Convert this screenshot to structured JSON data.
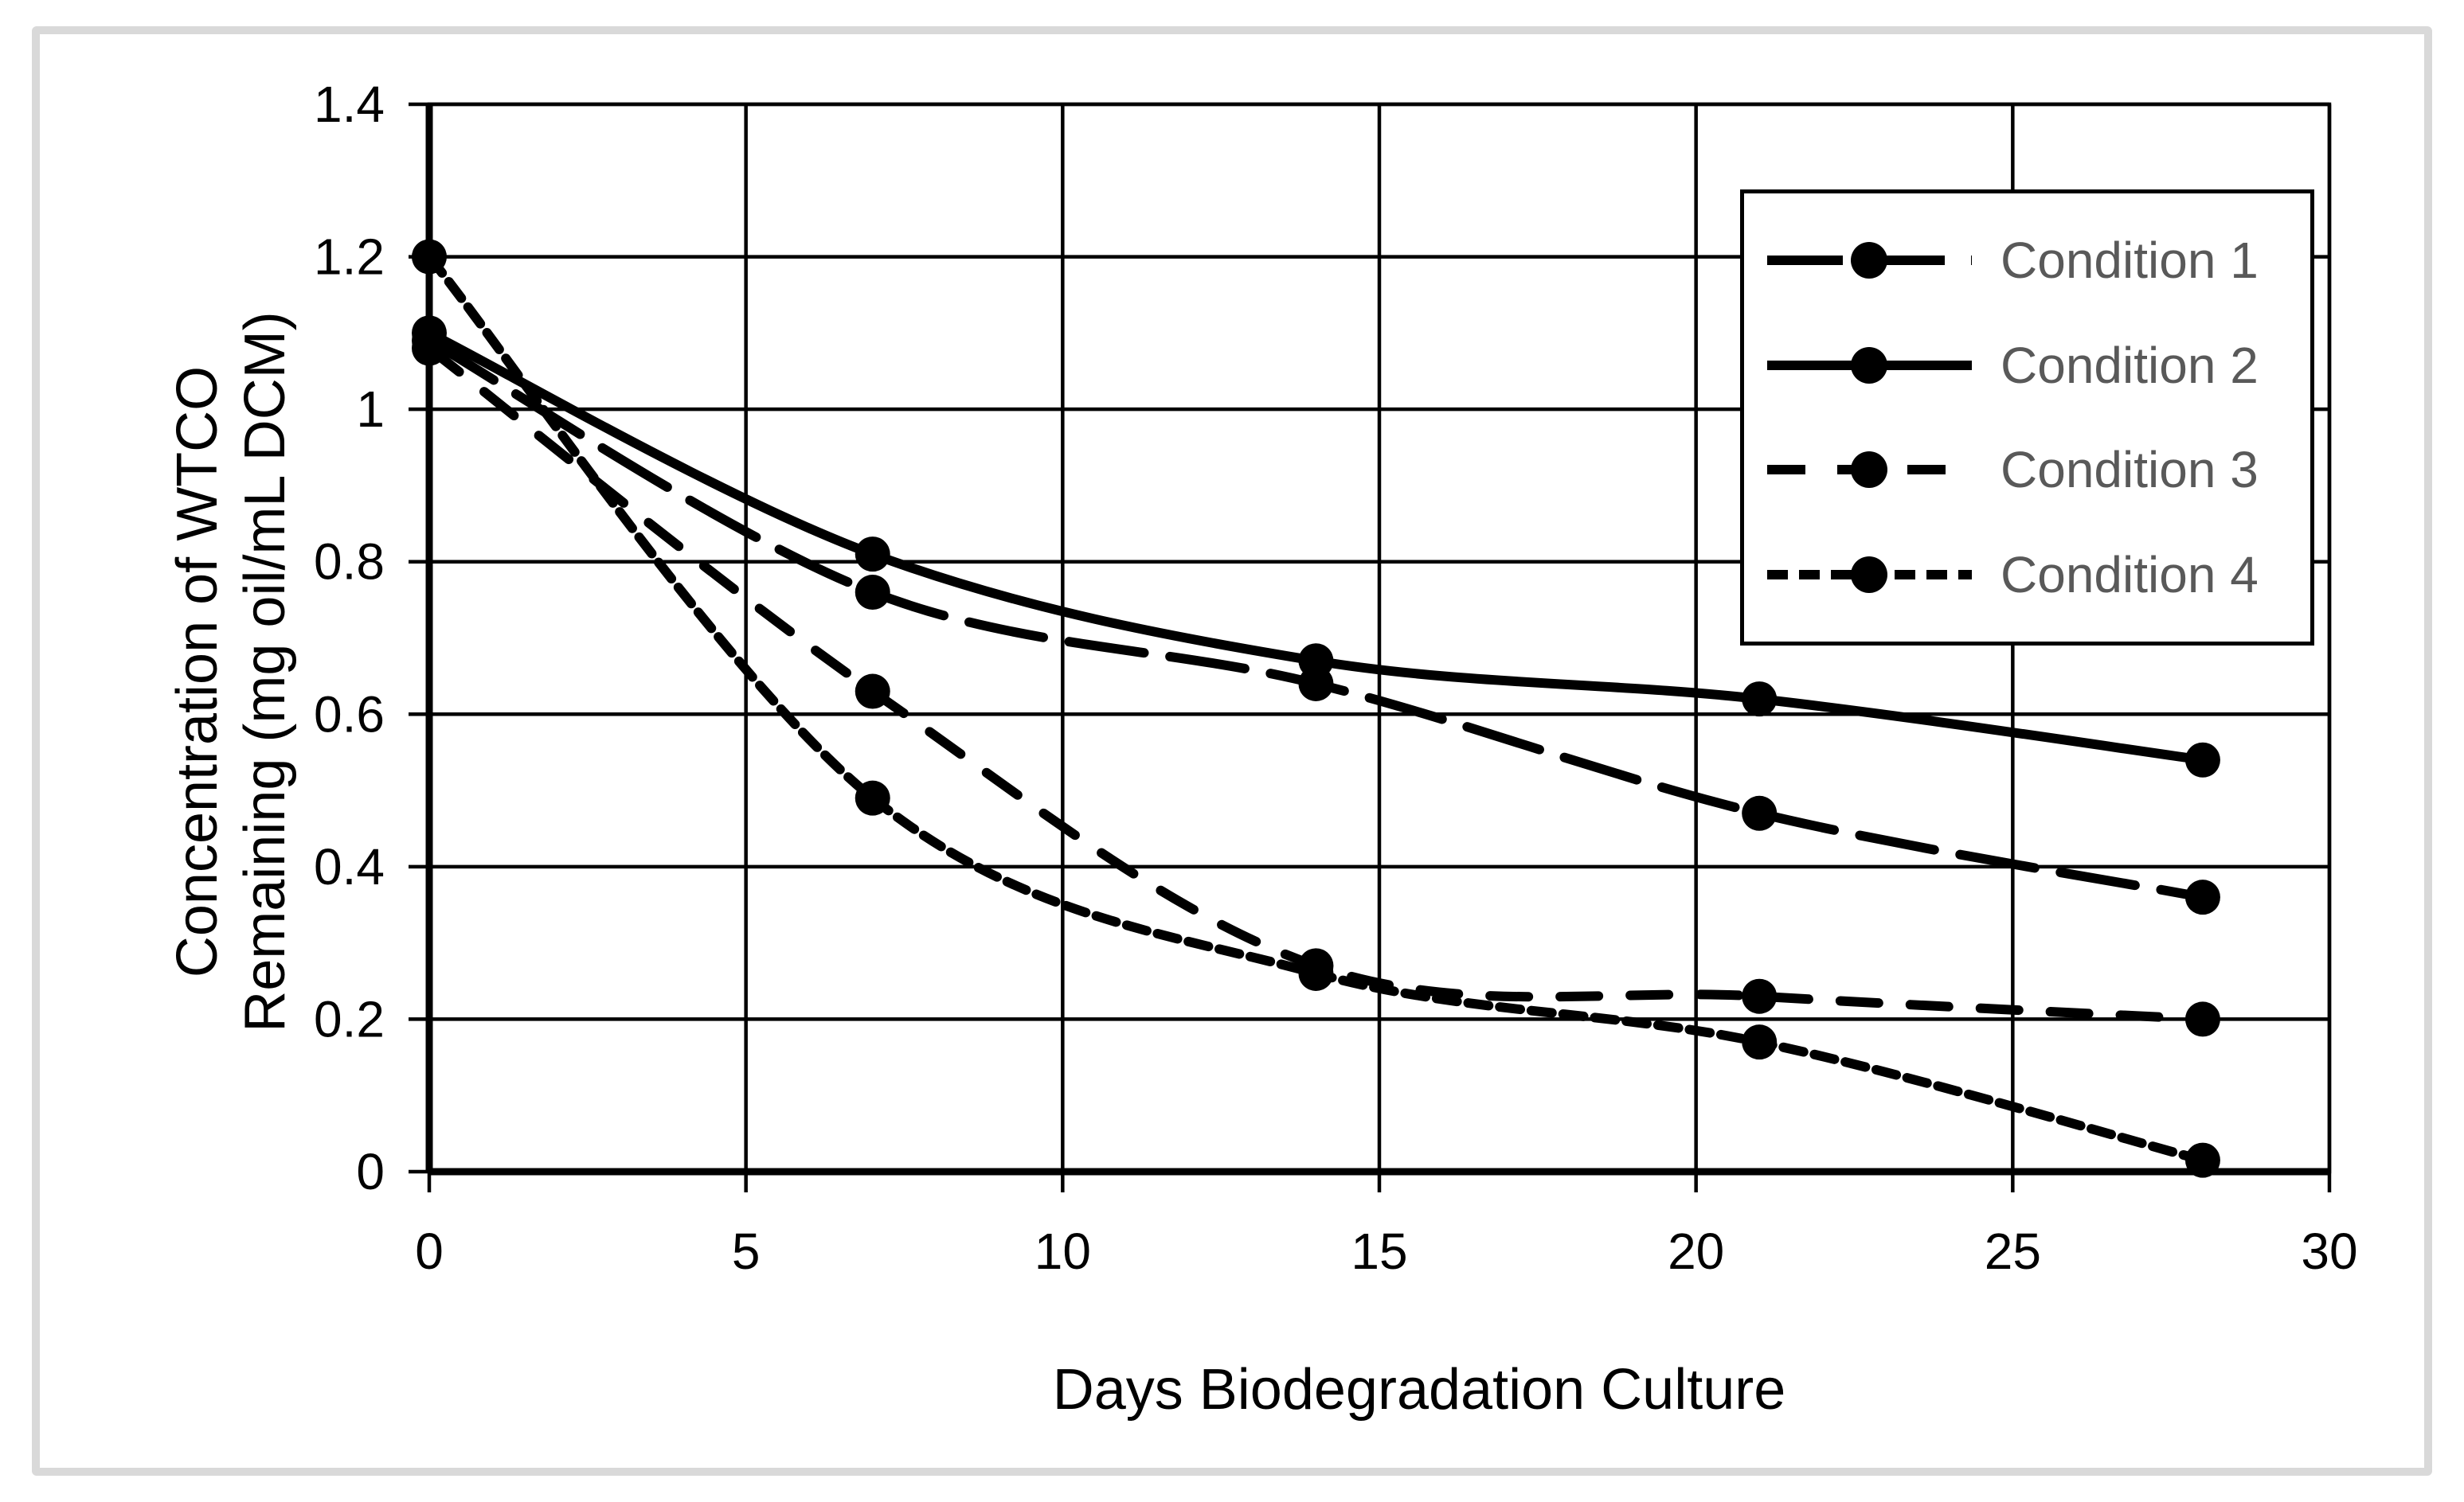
{
  "figure": {
    "background_color": "#ffffff",
    "frame_color": "#d9d9d9",
    "line_color": "#000000",
    "legend_text_color": "#595959"
  },
  "chart_data": {
    "type": "line",
    "title": "",
    "xlabel": "Days Biodegradation Culture",
    "ylabel_line1": "Concentration of WTCO",
    "ylabel_line2": "Remaining (mg oil/mL DCM)",
    "x": [
      0,
      7,
      14,
      21,
      28
    ],
    "xlim": [
      0,
      30
    ],
    "ylim": [
      0,
      1.4
    ],
    "x_tick_values": [
      0,
      5,
      10,
      15,
      20,
      25,
      30
    ],
    "x_tick_labels": [
      "0",
      "5",
      "10",
      "15",
      "20",
      "25",
      "30"
    ],
    "y_tick_values": [
      0,
      0.2,
      0.4,
      0.6,
      0.8,
      1,
      1.2,
      1.4
    ],
    "y_tick_labels": [
      "0",
      "0.2",
      "0.4",
      "0.6",
      "0.8",
      "1",
      "1.2",
      "1.4"
    ],
    "grid": true,
    "legend_position": "upper right",
    "marker": "filled-circle",
    "series": [
      {
        "name": "Condition 1",
        "line_style": "long-dash",
        "color": "#000000",
        "values": [
          1.09,
          0.76,
          0.64,
          0.47,
          0.36
        ]
      },
      {
        "name": "Condition 2",
        "line_style": "solid",
        "color": "#000000",
        "values": [
          1.1,
          0.81,
          0.67,
          0.62,
          0.54
        ]
      },
      {
        "name": "Condition 3",
        "line_style": "dash",
        "color": "#000000",
        "values": [
          1.08,
          0.63,
          0.27,
          0.23,
          0.2
        ]
      },
      {
        "name": "Condition 4",
        "line_style": "short-dash",
        "color": "#000000",
        "values": [
          1.2,
          0.49,
          0.26,
          0.17,
          0.015
        ]
      }
    ]
  }
}
